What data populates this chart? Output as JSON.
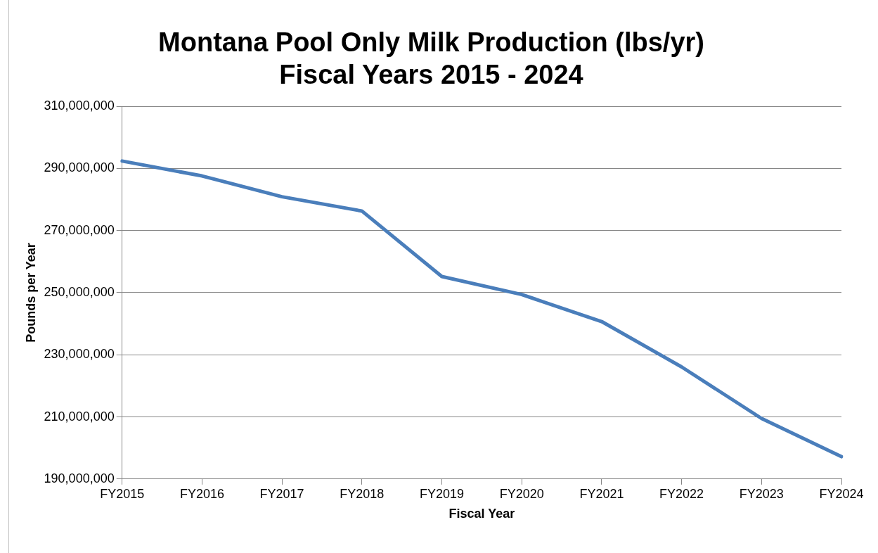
{
  "chart_data": {
    "type": "line",
    "title": "Montana Pool Only Milk Production (lbs/yr)",
    "subtitle": "Fiscal Years 2015 - 2024",
    "xlabel": "Fiscal Year",
    "ylabel": "Pounds per Year",
    "categories": [
      "FY2015",
      "FY2016",
      "FY2017",
      "FY2018",
      "FY2019",
      "FY2020",
      "FY2021",
      "FY2022",
      "FY2023",
      "FY2024"
    ],
    "series": [
      {
        "color": "#4a7ebb",
        "values": [
          292400000,
          287600000,
          280900000,
          276300000,
          255200000,
          249400000,
          240700000,
          226100000,
          209500000,
          197200000
        ]
      }
    ],
    "ylim": [
      190000000,
      310000000
    ],
    "yticks": [
      {
        "value": 190000000,
        "label": "190,000,000"
      },
      {
        "value": 210000000,
        "label": "210,000,000"
      },
      {
        "value": 230000000,
        "label": "230,000,000"
      },
      {
        "value": 250000000,
        "label": "250,000,000"
      },
      {
        "value": 270000000,
        "label": "270,000,000"
      },
      {
        "value": 290000000,
        "label": "290,000,000"
      },
      {
        "value": 310000000,
        "label": "310,000,000"
      }
    ],
    "grid": "y",
    "legend": false,
    "marker": "none",
    "line_style": "solid"
  }
}
